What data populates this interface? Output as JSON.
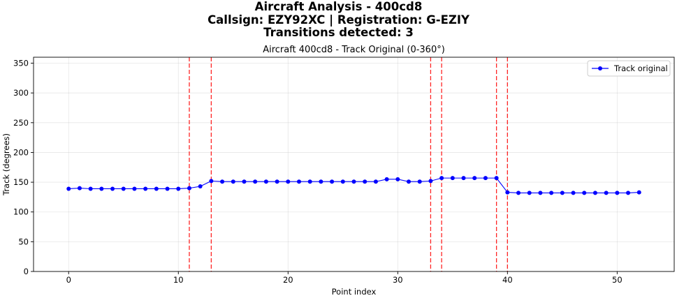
{
  "suptitle": {
    "line1": "Aircraft Analysis - 400cd8",
    "line2": "Callsign: EZY92XC  | Registration: G-EZIY",
    "line3": "Transitions detected: 3"
  },
  "chart_data": {
    "type": "line",
    "title": "Aircraft 400cd8 - Track Original (0-360°)",
    "xlabel": "Point index",
    "ylabel": "Track (degrees)",
    "xlim": [
      -3.2,
      55.2
    ],
    "ylim": [
      0,
      360
    ],
    "xticks": [
      0,
      10,
      20,
      30,
      40,
      50
    ],
    "yticks": [
      0,
      50,
      100,
      150,
      200,
      250,
      300,
      350
    ],
    "grid": true,
    "legend_position": "top-right",
    "series": [
      {
        "name": "Track original",
        "color": "#0000ff",
        "x": [
          0,
          1,
          2,
          3,
          4,
          5,
          6,
          7,
          8,
          9,
          10,
          11,
          12,
          13,
          14,
          15,
          16,
          17,
          18,
          19,
          20,
          21,
          22,
          23,
          24,
          25,
          26,
          27,
          28,
          29,
          30,
          31,
          32,
          33,
          34,
          35,
          36,
          37,
          38,
          39,
          40,
          41,
          42,
          43,
          44,
          45,
          46,
          47,
          48,
          49,
          50,
          51,
          52
        ],
        "y": [
          139,
          140,
          139,
          139,
          139,
          139,
          139,
          139,
          139,
          139,
          139,
          140,
          143,
          152,
          151,
          151,
          151,
          151,
          151,
          151,
          151,
          151,
          151,
          151,
          151,
          151,
          151,
          151,
          151,
          155,
          155,
          151,
          151,
          152,
          157,
          157,
          157,
          157,
          157,
          157,
          133,
          132,
          132,
          132,
          132,
          132,
          132,
          132,
          132,
          132,
          132,
          132,
          133
        ]
      }
    ],
    "transitions": [
      {
        "x": 11,
        "color": "#ff0000"
      },
      {
        "x": 13,
        "color": "#ff0000"
      },
      {
        "x": 33,
        "color": "#ff0000"
      },
      {
        "x": 34,
        "color": "#ff0000"
      },
      {
        "x": 39,
        "color": "#ff0000"
      },
      {
        "x": 40,
        "color": "#ff0000"
      }
    ]
  }
}
